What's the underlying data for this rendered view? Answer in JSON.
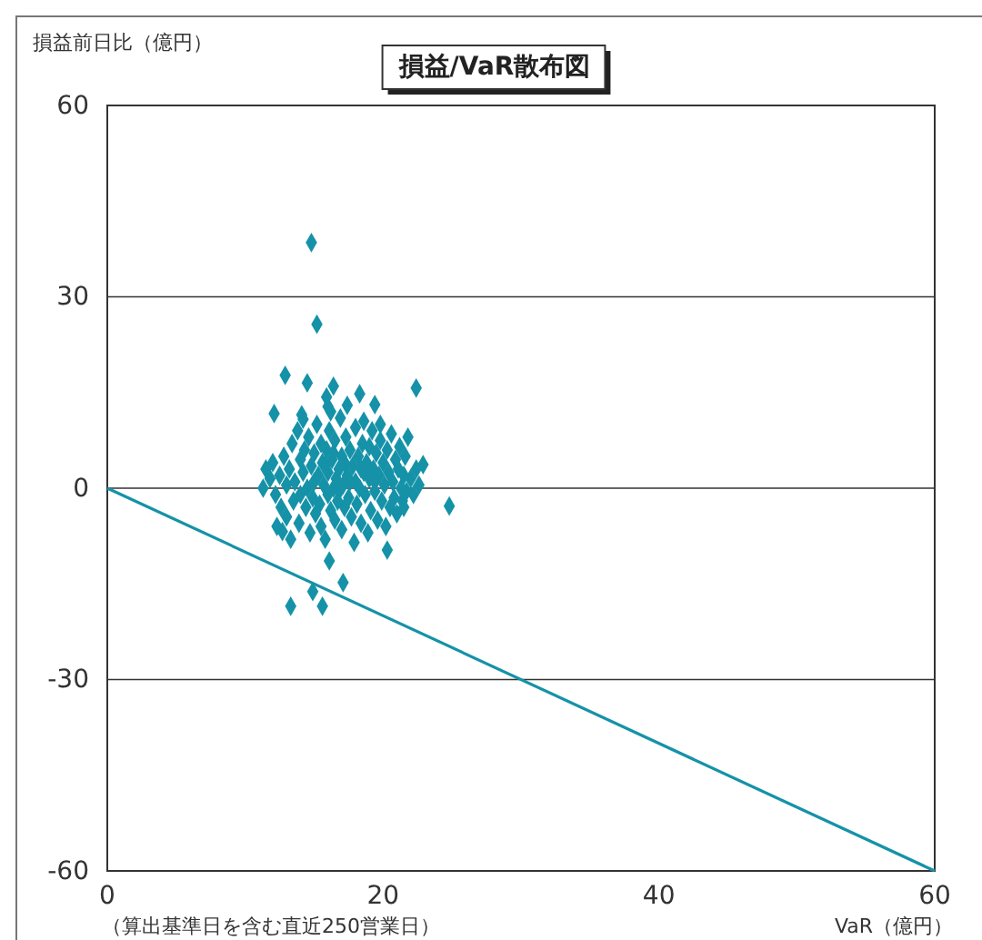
{
  "chart_data": {
    "type": "scatter",
    "title": "損益/VaR散布図",
    "ylabel": "損益前日比（億円）",
    "xlabel": "VaR（億円）",
    "annotations": [
      "（算出基準日を含む直近250営業日）"
    ],
    "xlim": [
      0,
      60
    ],
    "xticks": [
      0,
      20,
      40,
      60
    ],
    "ylim": [
      -60,
      60
    ],
    "yticks": [
      -60,
      -30,
      0,
      30,
      60
    ],
    "grid": "y",
    "series": [
      {
        "marker": "diamond",
        "color": "#1592a8",
        "x": [
          14.8,
          15.2,
          12.9,
          14.5,
          16.4,
          15.9,
          18.3,
          19.4,
          22.4,
          12.1,
          14.2,
          16,
          24.8,
          22.9,
          12.7,
          20.3,
          16.1,
          17.1,
          14.9,
          13.3,
          15.6,
          11.5,
          11.8,
          12,
          12.2,
          12.5,
          12.6,
          12.8,
          13,
          13,
          13.2,
          13.4,
          13.5,
          13.6,
          13.8,
          13.9,
          14,
          14,
          14.2,
          14.3,
          14.4,
          14.5,
          14.6,
          14.7,
          14.8,
          14.9,
          15,
          15,
          15.1,
          15.2,
          15.3,
          15.4,
          15.5,
          15.5,
          15.6,
          15.7,
          15.8,
          15.9,
          16,
          16,
          16.1,
          16.2,
          16.3,
          16.4,
          16.5,
          16.5,
          16.6,
          16.7,
          16.8,
          16.9,
          17,
          17,
          17.1,
          17.2,
          17.3,
          17.4,
          17.5,
          17.6,
          17.7,
          17.8,
          17.9,
          18,
          18,
          18.1,
          18.2,
          18.3,
          18.4,
          18.5,
          18.6,
          18.7,
          18.8,
          18.9,
          19,
          19,
          19.1,
          19.2,
          19.3,
          19.4,
          19.5,
          19.6,
          19.7,
          19.8,
          19.9,
          20,
          20.1,
          20.2,
          20.3,
          20.4,
          20.5,
          20.6,
          20.7,
          20.8,
          20.9,
          21,
          21.1,
          21.2,
          21.3,
          21.4,
          21.5,
          21.6,
          21.7,
          21.8,
          22,
          22.2,
          22.4,
          11.3,
          12.3,
          13.3,
          14.1,
          16.2,
          17.4,
          18.6,
          19.8,
          21.5,
          22.6,
          15.8,
          16.8,
          17.6,
          18.4,
          19.4,
          17.2,
          16.4
        ],
        "values": [
          38.5,
          25.7,
          17.7,
          16.5,
          16,
          14.3,
          14.8,
          13.1,
          15.7,
          11.7,
          10.8,
          12.8,
          -2.8,
          3.7,
          -6.8,
          -9.7,
          -11.4,
          -14.8,
          -16.2,
          -18.5,
          -18.5,
          3,
          1.5,
          4,
          -1,
          2,
          -3,
          5,
          0.5,
          -4.5,
          3,
          7,
          -2,
          1,
          9,
          -5.5,
          4.5,
          -1,
          2.5,
          6,
          -3,
          0,
          8,
          -7,
          3.5,
          -1.5,
          5.5,
          1,
          -4,
          10,
          2,
          -2.5,
          7,
          -6,
          4,
          0.5,
          -8,
          6,
          2.5,
          -1,
          9,
          -3.5,
          4.5,
          0,
          -5,
          7.5,
          1.5,
          -2,
          3,
          11,
          -6.5,
          5,
          0.5,
          -3,
          8,
          2,
          -1.5,
          6,
          -4.5,
          3.5,
          -8.5,
          1,
          9.5,
          -2.5,
          5,
          0,
          -5.5,
          7,
          2.5,
          -1,
          4,
          -7,
          6.5,
          1.5,
          -3.5,
          9,
          3,
          -0.5,
          5.5,
          -5,
          2,
          7.5,
          -2,
          4,
          0.5,
          -6,
          6,
          2.5,
          -3,
          8.5,
          1,
          -1.5,
          4.5,
          -4,
          3,
          6.5,
          0,
          -2,
          2,
          5,
          -0.5,
          8,
          1.5,
          -1,
          3,
          0,
          -6,
          -8,
          11.5,
          12,
          13,
          10.5,
          10,
          -3,
          0.5,
          3.5,
          -0.5,
          1,
          3,
          1,
          4,
          5.5
        ]
      },
      {
        "type": "line",
        "color": "#1592a8",
        "x": [
          0,
          60
        ],
        "values": [
          0,
          -60
        ]
      }
    ]
  }
}
